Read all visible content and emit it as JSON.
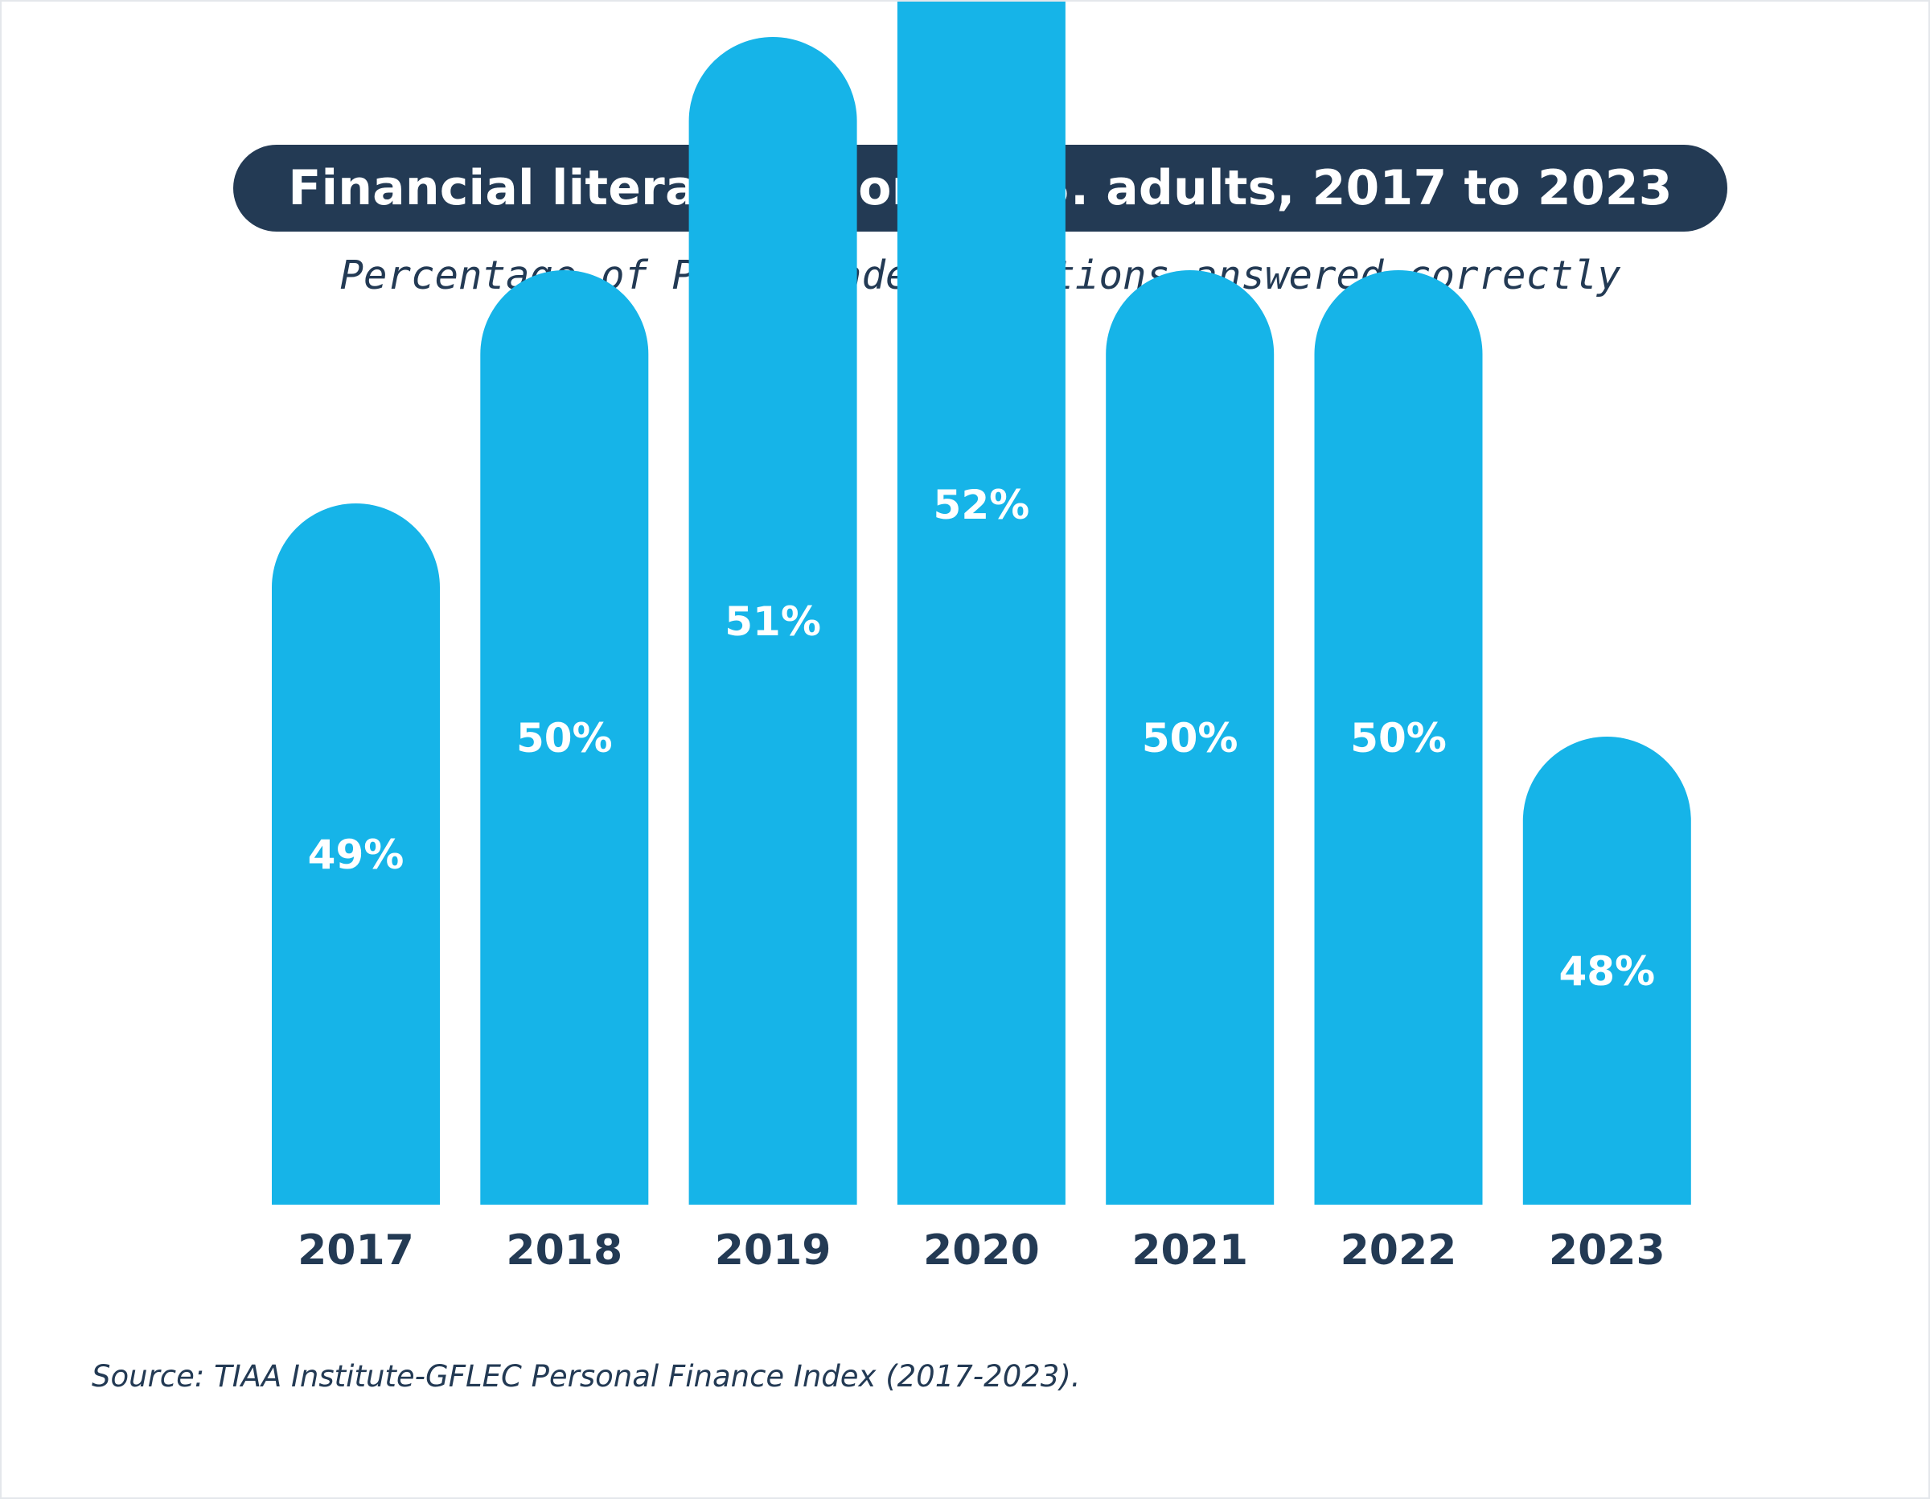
{
  "header": {
    "title": "Financial literacy among U.S. adults, 2017 to 2023",
    "subtitle": "Percentage of P-Fin Index questions answered correctly"
  },
  "chart_data": {
    "type": "bar",
    "title": "Financial literacy among U.S. adults, 2017 to 2023",
    "subtitle": "Percentage of P-Fin Index questions answered correctly",
    "categories": [
      "2017",
      "2018",
      "2019",
      "2020",
      "2021",
      "2022",
      "2023"
    ],
    "values": [
      49,
      50,
      51,
      52,
      50,
      50,
      48
    ],
    "value_labels": [
      "49%",
      "50%",
      "51%",
      "52%",
      "50%",
      "50%",
      "48%"
    ],
    "unit": "%",
    "xlabel": "",
    "ylabel": "",
    "grid": false,
    "legend": "none",
    "bar_style": "rounded-top",
    "colors": {
      "bar": "#16b4e8",
      "bar_label": "#ffffff",
      "category_label": "#233a54",
      "title_background": "#233a54"
    }
  },
  "footer": {
    "source": "Source: TIAA Institute-GFLEC Personal Finance Index (2017-2023)."
  }
}
